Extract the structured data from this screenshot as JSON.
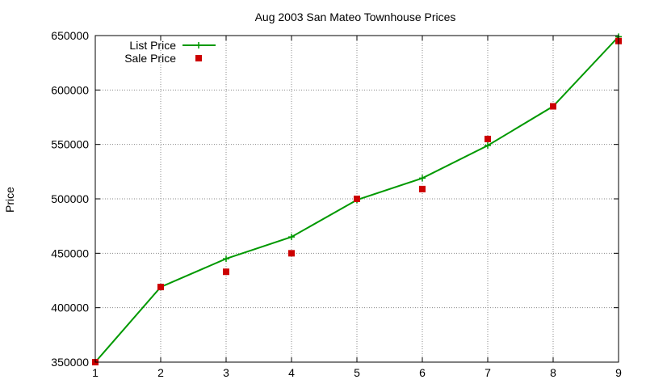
{
  "chart_data": {
    "type": "line",
    "title": "Aug 2003 San Mateo Townhouse Prices",
    "xlabel": "",
    "ylabel": "Price",
    "xlim": [
      1,
      9
    ],
    "ylim": [
      350000,
      650000
    ],
    "xticks": [
      "1",
      "2",
      "3",
      "4",
      "5",
      "6",
      "7",
      "8",
      "9"
    ],
    "yticks": [
      "350000",
      "400000",
      "450000",
      "500000",
      "550000",
      "600000",
      "650000"
    ],
    "grid": true,
    "legend_position": "top-left",
    "x": [
      1,
      2,
      3,
      4,
      5,
      6,
      7,
      8,
      9
    ],
    "series": [
      {
        "name": "List Price",
        "style": "line-with-plus",
        "color": "#009900",
        "values": [
          350000,
          419000,
          445000,
          465000,
          499000,
          519000,
          549000,
          585000,
          649000
        ]
      },
      {
        "name": "Sale Price",
        "style": "square-points",
        "color": "#cc0000",
        "values": [
          350000,
          419000,
          433000,
          450000,
          500000,
          509000,
          555000,
          585000,
          645000
        ]
      }
    ]
  }
}
